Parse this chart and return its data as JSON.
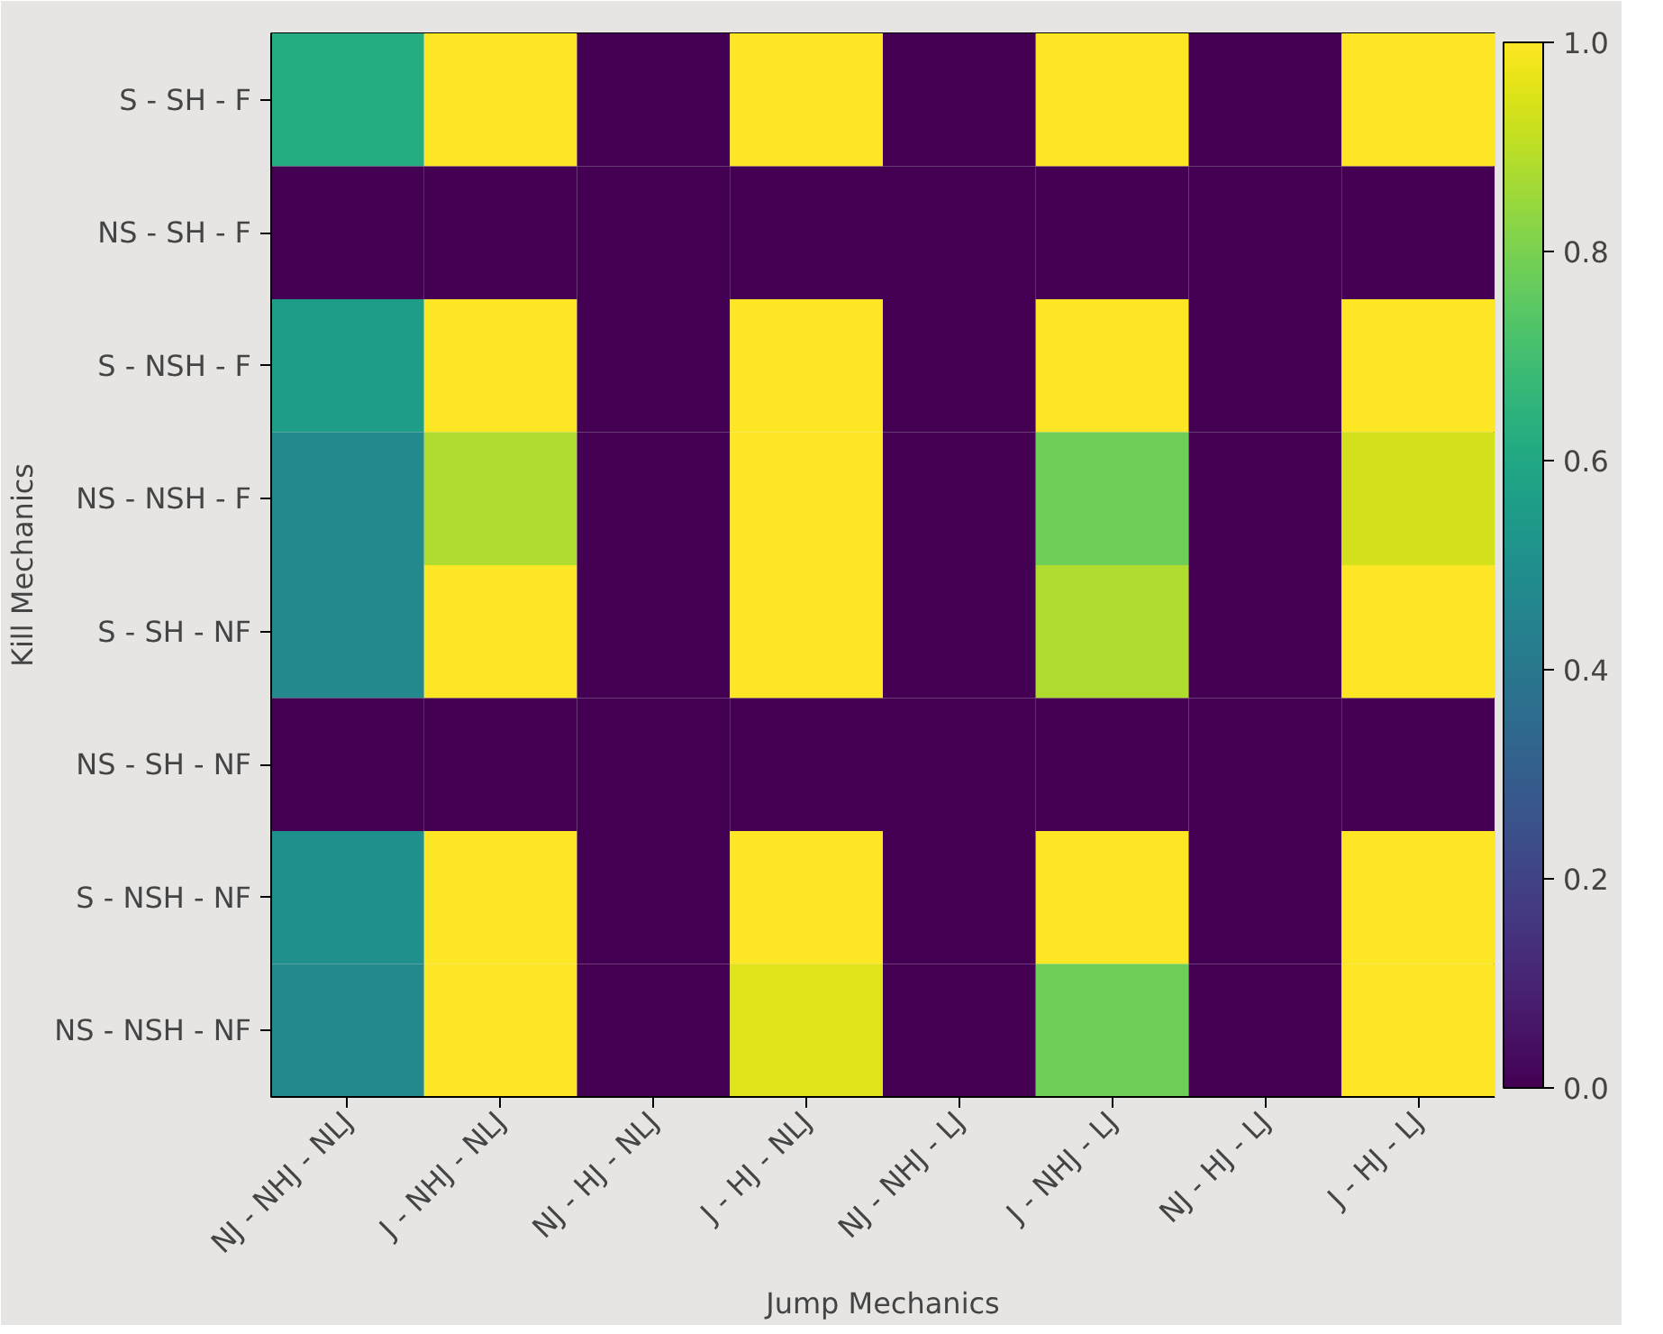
{
  "chart_data": {
    "type": "heatmap",
    "xlabel": "Jump Mechanics",
    "ylabel": "Kill Mechanics",
    "categories": [
      "NJ - NHJ - NLJ",
      "J - NHJ - NLJ",
      "NJ - HJ - NLJ",
      "J - HJ - NLJ",
      "NJ - NHJ - LJ",
      "J - NHJ - LJ",
      "NJ - HJ - LJ",
      "J - HJ - LJ"
    ],
    "y_categories": [
      "S - SH - F",
      "NS - SH - F",
      "S - NSH - F",
      "NS - NSH - F",
      "S - SH - NF",
      "NS - SH - NF",
      "S - NSH - NF",
      "NS - NSH - NF"
    ],
    "cells": [
      [
        0.62,
        1,
        0,
        1,
        0,
        1,
        0,
        1
      ],
      [
        0,
        0,
        0,
        0,
        0,
        0,
        0,
        0
      ],
      [
        0.56,
        1,
        0,
        1,
        0,
        1,
        0,
        1
      ],
      [
        0.47,
        0.88,
        0,
        1,
        0,
        0.78,
        0,
        0.93
      ],
      [
        0.47,
        1,
        0,
        1,
        0,
        0.88,
        0,
        1
      ],
      [
        0,
        0,
        0,
        0,
        0,
        0,
        0,
        0
      ],
      [
        0.5,
        1,
        0,
        1,
        0,
        1,
        0,
        1
      ],
      [
        0.47,
        1,
        0,
        0.95,
        0,
        0.78,
        0,
        1
      ]
    ],
    "clim": [
      0,
      1
    ],
    "cticks": [
      {
        "value": 0,
        "label": "0.0"
      },
      {
        "value": 0.2,
        "label": "0.2"
      },
      {
        "value": 0.4,
        "label": "0.4"
      },
      {
        "value": 0.6,
        "label": "0.6"
      },
      {
        "value": 0.8,
        "label": "0.8"
      },
      {
        "value": 1,
        "label": "1.0"
      }
    ]
  }
}
